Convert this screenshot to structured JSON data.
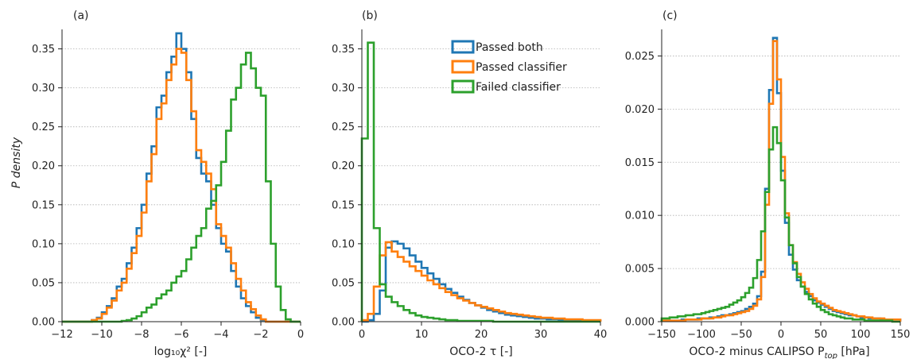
{
  "colors": {
    "s0": "#1f77b4",
    "s1": "#ff7f0e",
    "s2": "#2ca02c",
    "grid": "#b0b0b0",
    "axis": "#222222"
  },
  "legend": [
    "Passed both",
    "Passed classifier",
    "Failed classifier"
  ],
  "chart_data": [
    {
      "panel": "(a)",
      "type": "histogram",
      "xlabel": "log₁₀χ² [-]",
      "ylabel": "P density",
      "xlim": [
        -12,
        0
      ],
      "ylim": [
        0,
        0.375
      ],
      "xticks": [
        -12,
        -10,
        -8,
        -6,
        -4,
        -2,
        0
      ],
      "yticks": [
        0.0,
        0.05,
        0.1,
        0.15,
        0.2,
        0.25,
        0.3,
        0.35
      ],
      "ytick_labels": [
        "0.00",
        "0.05",
        "0.10",
        "0.15",
        "0.20",
        "0.25",
        "0.30",
        "0.35"
      ],
      "grid": "y-dotted",
      "bin_edges": [
        -12,
        -11.75,
        -11.5,
        -11.25,
        -11,
        -10.75,
        -10.5,
        -10.25,
        -10,
        -9.75,
        -9.5,
        -9.25,
        -9,
        -8.75,
        -8.5,
        -8.25,
        -8,
        -7.75,
        -7.5,
        -7.25,
        -7,
        -6.75,
        -6.5,
        -6.25,
        -6,
        -5.75,
        -5.5,
        -5.25,
        -5,
        -4.75,
        -4.5,
        -4.25,
        -4,
        -3.75,
        -3.5,
        -3.25,
        -3,
        -2.75,
        -2.5,
        -2.25,
        -2,
        -1.75,
        -1.5,
        -1.25,
        -1,
        -0.75,
        -0.5,
        -0.25,
        0
      ],
      "series": [
        {
          "name": "Passed both",
          "values": [
            0,
            0,
            0,
            0,
            0,
            0,
            0.002,
            0.005,
            0.012,
            0.02,
            0.03,
            0.045,
            0.055,
            0.075,
            0.095,
            0.12,
            0.15,
            0.19,
            0.225,
            0.275,
            0.29,
            0.32,
            0.34,
            0.37,
            0.35,
            0.32,
            0.26,
            0.21,
            0.19,
            0.18,
            0.15,
            0.12,
            0.1,
            0.09,
            0.065,
            0.045,
            0.03,
            0.02,
            0.012,
            0.005,
            0.002,
            0,
            0,
            0,
            0,
            0,
            0,
            0
          ]
        },
        {
          "name": "Passed classifier",
          "values": [
            0,
            0,
            0,
            0,
            0,
            0,
            0.002,
            0.004,
            0.01,
            0.018,
            0.027,
            0.04,
            0.05,
            0.068,
            0.088,
            0.11,
            0.14,
            0.18,
            0.215,
            0.26,
            0.28,
            0.31,
            0.33,
            0.35,
            0.345,
            0.31,
            0.27,
            0.22,
            0.205,
            0.19,
            0.17,
            0.125,
            0.11,
            0.095,
            0.075,
            0.055,
            0.04,
            0.025,
            0.016,
            0.008,
            0.003,
            0,
            0,
            0,
            0,
            0,
            0,
            0
          ]
        },
        {
          "name": "Failed classifier",
          "values": [
            0,
            0,
            0,
            0,
            0,
            0,
            0,
            0,
            0,
            0,
            0,
            0,
            0.001,
            0.002,
            0.004,
            0.007,
            0.012,
            0.018,
            0.022,
            0.03,
            0.035,
            0.04,
            0.05,
            0.058,
            0.065,
            0.08,
            0.095,
            0.11,
            0.12,
            0.145,
            0.155,
            0.175,
            0.205,
            0.245,
            0.285,
            0.3,
            0.33,
            0.345,
            0.325,
            0.3,
            0.29,
            0.18,
            0.1,
            0.045,
            0.015,
            0.003,
            0,
            0
          ]
        }
      ]
    },
    {
      "panel": "(b)",
      "type": "histogram",
      "xlabel": "OCO-2 τ [-]",
      "ylabel": "",
      "xlim": [
        0,
        40
      ],
      "ylim": [
        0,
        0.375
      ],
      "xticks": [
        0,
        10,
        20,
        30,
        40
      ],
      "yticks": [
        0.0,
        0.05,
        0.1,
        0.15,
        0.2,
        0.25,
        0.3,
        0.35
      ],
      "ytick_labels": [
        "0.00",
        "0.05",
        "0.10",
        "0.15",
        "0.20",
        "0.25",
        "0.30",
        "0.35"
      ],
      "grid": "y-dotted",
      "legend_position": "top-right",
      "bin_edges": [
        0,
        1,
        2,
        3,
        4,
        5,
        6,
        7,
        8,
        9,
        10,
        11,
        12,
        13,
        14,
        15,
        16,
        17,
        18,
        19,
        20,
        21,
        22,
        23,
        24,
        25,
        26,
        27,
        28,
        29,
        30,
        31,
        32,
        33,
        34,
        35,
        36,
        37,
        38,
        39,
        40
      ],
      "series": [
        {
          "name": "Passed both",
          "values": [
            0,
            0.002,
            0.01,
            0.04,
            0.095,
            0.103,
            0.1,
            0.094,
            0.085,
            0.077,
            0.069,
            0.062,
            0.055,
            0.048,
            0.042,
            0.037,
            0.032,
            0.028,
            0.024,
            0.021,
            0.018,
            0.015,
            0.013,
            0.011,
            0.009,
            0.008,
            0.007,
            0.006,
            0.005,
            0.004,
            0.004,
            0.003,
            0.003,
            0.002,
            0.002,
            0.002,
            0.001,
            0.001,
            0.001,
            0.001
          ]
        },
        {
          "name": "Passed classifier",
          "values": [
            0.002,
            0.01,
            0.045,
            0.085,
            0.102,
            0.09,
            0.083,
            0.077,
            0.071,
            0.065,
            0.059,
            0.053,
            0.048,
            0.043,
            0.038,
            0.034,
            0.03,
            0.027,
            0.024,
            0.021,
            0.019,
            0.017,
            0.015,
            0.013,
            0.011,
            0.01,
            0.009,
            0.008,
            0.007,
            0.006,
            0.005,
            0.005,
            0.004,
            0.004,
            0.003,
            0.003,
            0.003,
            0.002,
            0.002,
            0.002
          ]
        },
        {
          "name": "Failed classifier",
          "values": [
            0.235,
            0.358,
            0.12,
            0.048,
            0.032,
            0.025,
            0.02,
            0.015,
            0.011,
            0.008,
            0.006,
            0.005,
            0.004,
            0.003,
            0.002,
            0.002,
            0.001,
            0.001,
            0.001,
            0.001,
            0.001,
            0.001,
            0,
            0,
            0,
            0,
            0,
            0,
            0,
            0,
            0,
            0,
            0,
            0,
            0,
            0,
            0,
            0,
            0,
            0
          ]
        }
      ]
    },
    {
      "panel": "(c)",
      "type": "histogram",
      "xlabel": "OCO-2 minus CALIPSO P",
      "xlabel_sub": "top",
      "xlabel_suffix": " [hPa]",
      "ylabel": "",
      "xlim": [
        -150,
        150
      ],
      "ylim": [
        0,
        0.0275
      ],
      "xticks": [
        -150,
        -100,
        -50,
        0,
        50,
        100,
        150
      ],
      "xtick_labels": [
        "−150",
        "−100",
        "−50",
        "0",
        "50",
        "100",
        "150"
      ],
      "yticks": [
        0.0,
        0.005,
        0.01,
        0.015,
        0.02,
        0.025
      ],
      "ytick_labels": [
        "0.000",
        "0.005",
        "0.010",
        "0.015",
        "0.020",
        "0.025"
      ],
      "grid": "y-dotted",
      "bin_edges": [
        -150,
        -145,
        -140,
        -135,
        -130,
        -125,
        -120,
        -115,
        -110,
        -105,
        -100,
        -95,
        -90,
        -85,
        -80,
        -75,
        -70,
        -65,
        -60,
        -55,
        -50,
        -45,
        -40,
        -35,
        -30,
        -25,
        -20,
        -15,
        -10,
        -5,
        0,
        5,
        10,
        15,
        20,
        25,
        30,
        35,
        40,
        45,
        50,
        55,
        60,
        65,
        70,
        75,
        80,
        85,
        90,
        95,
        100,
        105,
        110,
        115,
        120,
        125,
        130,
        135,
        140,
        145,
        150
      ],
      "series": [
        {
          "name": "Passed both",
          "values": [
            0.0001,
            0.0001,
            0.0001,
            0.0001,
            0.0001,
            0.0002,
            0.0002,
            0.0002,
            0.0002,
            0.0003,
            0.0003,
            0.0003,
            0.0004,
            0.0004,
            0.0005,
            0.0006,
            0.0006,
            0.0007,
            0.0008,
            0.0009,
            0.001,
            0.0012,
            0.0014,
            0.0017,
            0.0024,
            0.0047,
            0.0125,
            0.0218,
            0.0267,
            0.0215,
            0.0142,
            0.0093,
            0.0063,
            0.0049,
            0.0039,
            0.0033,
            0.0028,
            0.0024,
            0.002,
            0.0018,
            0.0016,
            0.0014,
            0.0012,
            0.001,
            0.0009,
            0.0008,
            0.0007,
            0.0006,
            0.0006,
            0.0005,
            0.0004,
            0.0004,
            0.0003,
            0.0003,
            0.0003,
            0.0002,
            0.0002,
            0.0002,
            0.0002,
            0.0002
          ]
        },
        {
          "name": "Passed classifier",
          "values": [
            0.0001,
            0.0001,
            0.0001,
            0.0001,
            0.0001,
            0.0001,
            0.0002,
            0.0002,
            0.0002,
            0.0002,
            0.0003,
            0.0003,
            0.0003,
            0.0004,
            0.0004,
            0.0005,
            0.0006,
            0.0006,
            0.0007,
            0.0008,
            0.0009,
            0.001,
            0.0012,
            0.0015,
            0.0021,
            0.0042,
            0.011,
            0.0205,
            0.0264,
            0.0228,
            0.0155,
            0.0102,
            0.0072,
            0.0056,
            0.0045,
            0.0037,
            0.0031,
            0.0026,
            0.0022,
            0.0019,
            0.0017,
            0.0015,
            0.0013,
            0.0011,
            0.001,
            0.0009,
            0.0008,
            0.0007,
            0.0006,
            0.0005,
            0.0005,
            0.0004,
            0.0004,
            0.0003,
            0.0003,
            0.0003,
            0.0002,
            0.0002,
            0.0002,
            0.0002
          ]
        },
        {
          "name": "Failed classifier",
          "values": [
            0.0003,
            0.0003,
            0.0004,
            0.0004,
            0.0005,
            0.0005,
            0.0006,
            0.0006,
            0.0007,
            0.0007,
            0.0008,
            0.0009,
            0.001,
            0.0011,
            0.0012,
            0.0013,
            0.0014,
            0.0016,
            0.0018,
            0.002,
            0.0023,
            0.0027,
            0.0032,
            0.0041,
            0.0058,
            0.0085,
            0.0122,
            0.0162,
            0.0183,
            0.0168,
            0.0133,
            0.0098,
            0.0072,
            0.0055,
            0.0042,
            0.0033,
            0.0026,
            0.0021,
            0.0017,
            0.0014,
            0.0011,
            0.0009,
            0.0007,
            0.0006,
            0.0005,
            0.0004,
            0.0003,
            0.0003,
            0.0002,
            0.0002,
            0.0002,
            0.0001,
            0.0001,
            0.0001,
            0.0001,
            0.0001,
            0.0001,
            0.0001,
            0,
            0
          ]
        }
      ]
    }
  ]
}
